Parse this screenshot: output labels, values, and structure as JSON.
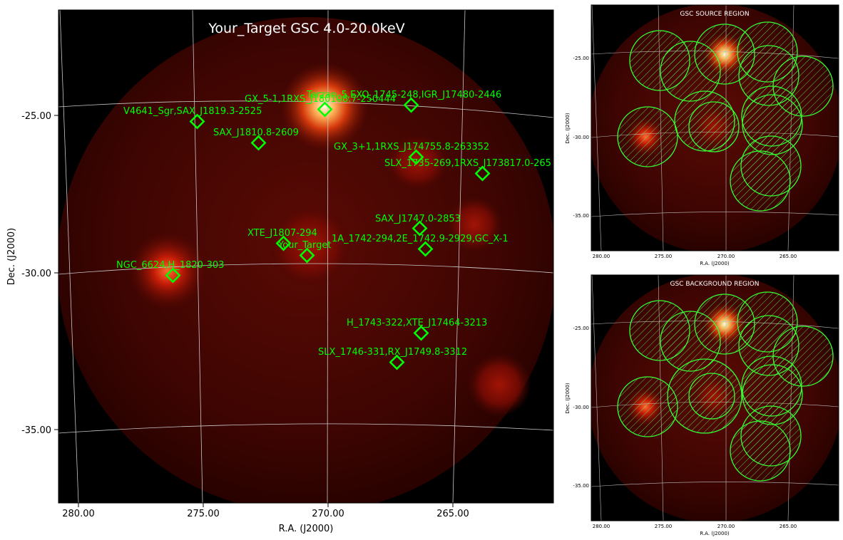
{
  "main": {
    "title": "Your_Target GSC 4.0-20.0keV",
    "xlabel": "R.A. (J2000)",
    "ylabel": "Dec. (J2000)",
    "xticks": [
      "280.00",
      "275.00",
      "270.00",
      "265.00"
    ],
    "yticks": [
      "-25.00",
      "-30.00",
      "-35.00"
    ],
    "sources": [
      {
        "label": "GX_5-1,1RXS_J180108.7-250444"
      },
      {
        "label": "Terzan_5,EXO_1745-248,IGR_J17480-2446"
      },
      {
        "label": "V4641_Sgr,SAX_J1819.3-2525"
      },
      {
        "label": "SAX_J1810.8-2609"
      },
      {
        "label": "GX_3+1,1RXS_J174755.8-263352"
      },
      {
        "label": "SLX_1735-269,1RXS_J173817.0-265"
      },
      {
        "label": "SAX_J1747.0-2853"
      },
      {
        "label": "XTE_J1807-294"
      },
      {
        "label": "Your_Target"
      },
      {
        "label": "1A_1742-294,2E_1742.9-2929,GC_X-1"
      },
      {
        "label": "NGC_6624,H_1820-303"
      },
      {
        "label": "H_1743-322,XTE_J17464-3213"
      },
      {
        "label": "SLX_1746-331,RX_J1749.8-3312"
      }
    ]
  },
  "source_panel": {
    "title": "GSC SOURCE REGION",
    "xlabel": "R.A. (J2000)",
    "ylabel": "Dec. (J2000)",
    "xticks": [
      "280.00",
      "275.00",
      "270.00",
      "265.00"
    ],
    "yticks": [
      "-25.00",
      "-30.00",
      "-35.00"
    ]
  },
  "background_panel": {
    "title": "GSC BACKGROUND REGION",
    "xlabel": "R.A. (J2000)",
    "ylabel": "Dec. (J2000)",
    "xticks": [
      "280.00",
      "275.00",
      "270.00",
      "265.00"
    ],
    "yticks": [
      "-25.00",
      "-30.00",
      "-35.00"
    ]
  },
  "colors": {
    "marker": "#00ff00",
    "sky_bright": "#fff6c0",
    "sky_mid": "#cc2200",
    "sky_dim": "#3a0300"
  }
}
